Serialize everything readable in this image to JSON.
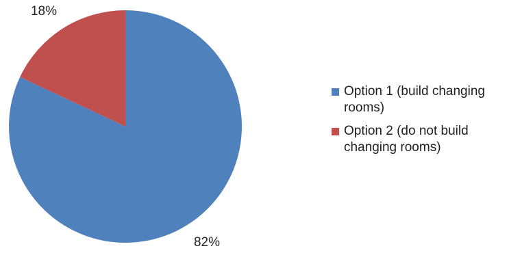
{
  "chart_data": {
    "type": "pie",
    "categories": [
      "Option 1 (build changing rooms)",
      "Option 2 (do not build changing rooms)"
    ],
    "values": [
      82,
      18
    ],
    "data_labels": [
      "82%",
      "18%"
    ],
    "colors": [
      "#4f81bd",
      "#c0504d"
    ],
    "legend_position": "right",
    "title": ""
  }
}
